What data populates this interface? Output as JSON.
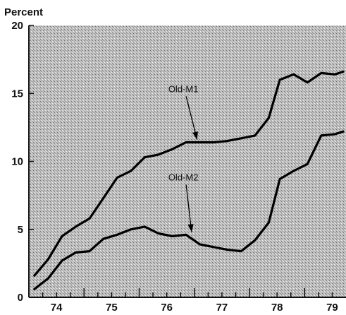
{
  "chart_data": {
    "type": "line",
    "ylabel": "Percent",
    "ylim": [
      0,
      20
    ],
    "xlim": [
      1974.0,
      1979.75
    ],
    "yticks": [
      0,
      5,
      10,
      15,
      20
    ],
    "xticks": [
      {
        "label": "74",
        "value": 1974.5
      },
      {
        "label": "75",
        "value": 1975.5
      },
      {
        "label": "76",
        "value": 1976.5
      },
      {
        "label": "77",
        "value": 1977.5
      },
      {
        "label": "78",
        "value": 1978.5
      },
      {
        "label": "79",
        "value": 1979.5
      }
    ],
    "grid": false,
    "background": "stippled",
    "series": [
      {
        "name": "Old-M1",
        "x": [
          1974.1,
          1974.35,
          1974.6,
          1974.85,
          1975.1,
          1975.35,
          1975.6,
          1975.85,
          1976.1,
          1976.35,
          1976.6,
          1976.85,
          1977.1,
          1977.35,
          1977.6,
          1977.85,
          1978.1,
          1978.35,
          1978.55,
          1978.8,
          1979.05,
          1979.3,
          1979.55,
          1979.7
        ],
        "values": [
          1.6,
          2.8,
          4.5,
          5.2,
          5.8,
          7.3,
          8.8,
          9.3,
          10.3,
          10.5,
          10.9,
          11.4,
          11.4,
          11.4,
          11.5,
          11.7,
          11.9,
          13.2,
          16.0,
          16.4,
          15.8,
          16.5,
          16.4,
          16.6
        ]
      },
      {
        "name": "Old-M2",
        "x": [
          1974.1,
          1974.35,
          1974.6,
          1974.85,
          1975.1,
          1975.35,
          1975.6,
          1975.85,
          1976.1,
          1976.35,
          1976.6,
          1976.85,
          1977.1,
          1977.35,
          1977.6,
          1977.85,
          1978.1,
          1978.35,
          1978.55,
          1978.8,
          1979.05,
          1979.3,
          1979.55,
          1979.7
        ],
        "values": [
          0.6,
          1.4,
          2.7,
          3.3,
          3.4,
          4.3,
          4.6,
          5.0,
          5.2,
          4.7,
          4.5,
          4.6,
          3.9,
          3.7,
          3.5,
          3.4,
          4.2,
          5.5,
          8.7,
          9.3,
          9.8,
          11.9,
          12.0,
          12.2
        ]
      }
    ],
    "annotations": [
      {
        "text": "Old-M1",
        "series": 0,
        "label_at": [
          1976.8,
          15.1
        ],
        "arrow_to": [
          1977.05,
          11.6
        ]
      },
      {
        "text": "Old-M2",
        "series": 1,
        "label_at": [
          1976.8,
          8.6
        ],
        "arrow_to": [
          1976.95,
          4.8
        ]
      }
    ]
  }
}
